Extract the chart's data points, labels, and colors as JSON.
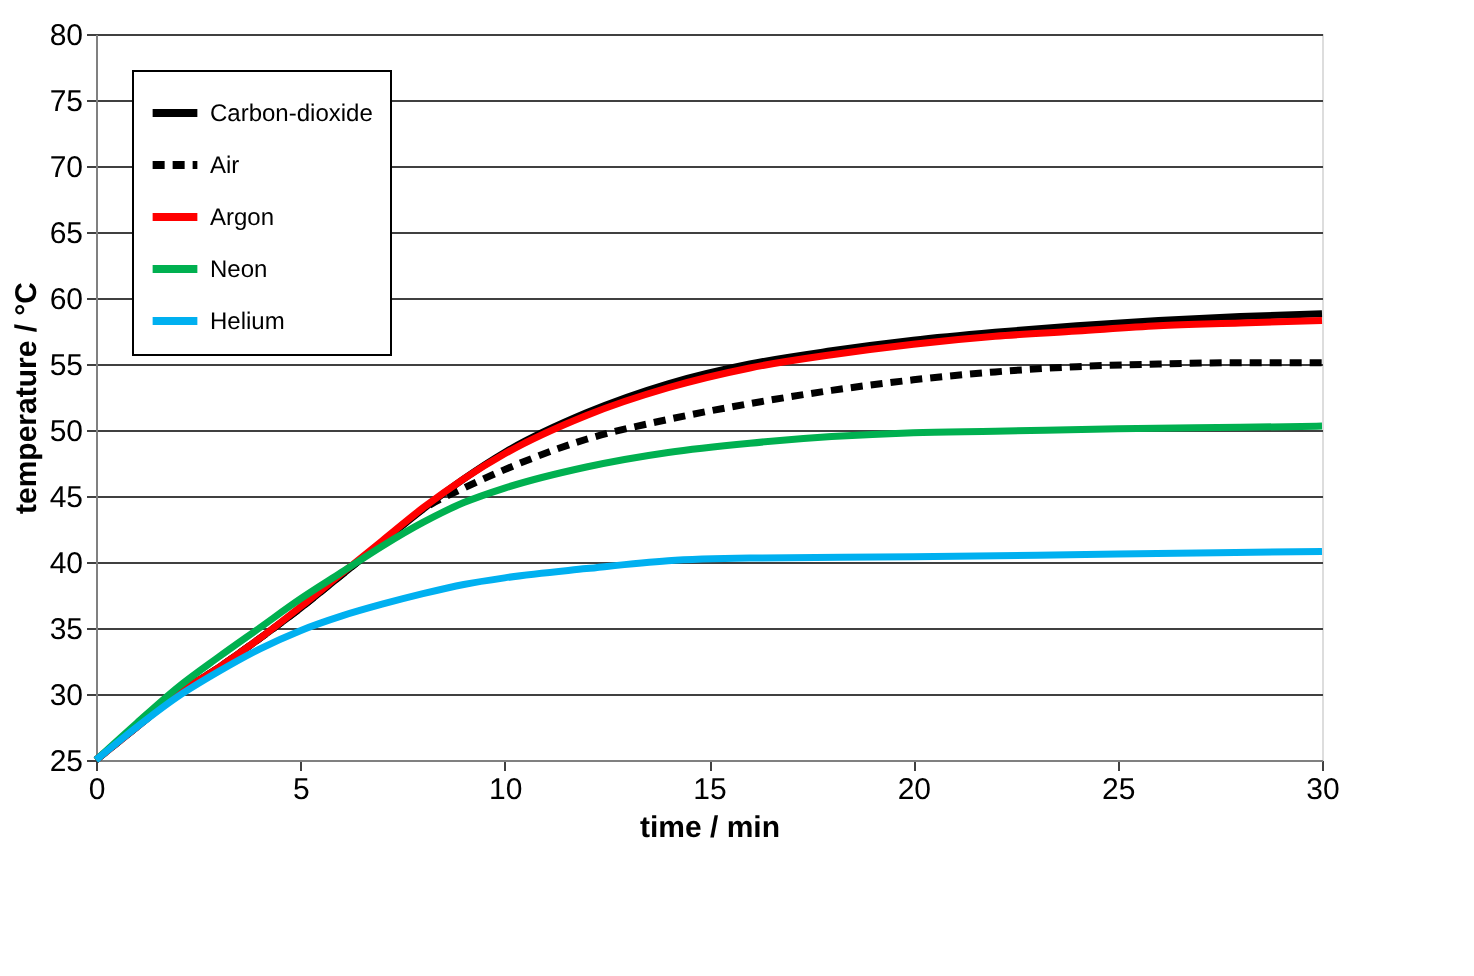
{
  "chart_data": {
    "type": "line",
    "xlabel": "time  / min",
    "ylabel": "temperature / °C",
    "xlim": [
      0,
      30
    ],
    "xticks": [
      0,
      5,
      10,
      15,
      20,
      25,
      30
    ],
    "ylim": [
      25,
      80
    ],
    "yticks": [
      25,
      30,
      35,
      40,
      45,
      50,
      55,
      60,
      65,
      70,
      75,
      80
    ],
    "grid": "y",
    "legend": "top left",
    "marker": "none",
    "series": [
      {
        "name": "Carbon-dioxide",
        "color": "#000000",
        "line_style": "solid",
        "x": [
          0,
          1,
          2,
          3,
          4,
          5,
          6,
          7,
          8,
          9,
          10,
          12,
          14,
          16,
          18,
          20,
          22,
          24,
          26,
          28,
          30
        ],
        "values": [
          25,
          27.5,
          30,
          32,
          34.2,
          36.5,
          39,
          41.5,
          44,
          46.3,
          48.3,
          51.3,
          53.5,
          55,
          56,
          56.8,
          57.4,
          57.9,
          58.3,
          58.6,
          58.8
        ]
      },
      {
        "name": "Air",
        "color": "#000000",
        "line_style": "dashed",
        "x": [
          0,
          1,
          2,
          3,
          4,
          5,
          6,
          7,
          8,
          9,
          10,
          12,
          14,
          16,
          18,
          20,
          22,
          24,
          26,
          28,
          30
        ],
        "values": [
          25,
          27.5,
          30,
          32,
          34.2,
          36.5,
          39,
          41.5,
          44,
          45.6,
          47,
          49.3,
          50.8,
          52,
          53,
          53.8,
          54.4,
          54.8,
          55,
          55.1,
          55.1
        ]
      },
      {
        "name": "Argon",
        "color": "#ff0000",
        "line_style": "solid",
        "x": [
          0,
          1,
          2,
          3,
          4,
          5,
          6,
          7,
          8,
          9,
          10,
          12,
          14,
          16,
          18,
          20,
          22,
          24,
          26,
          28,
          30
        ],
        "values": [
          25,
          27.5,
          30,
          32,
          34.2,
          36.6,
          39.1,
          41.6,
          44.1,
          46.3,
          48.2,
          51.1,
          53.2,
          54.7,
          55.7,
          56.5,
          57.1,
          57.5,
          57.9,
          58.1,
          58.3
        ]
      },
      {
        "name": "Neon",
        "color": "#00b050",
        "line_style": "solid",
        "x": [
          0,
          1,
          2,
          3,
          4,
          5,
          6,
          7,
          8,
          9,
          10,
          12,
          14,
          16,
          18,
          20,
          22,
          25,
          28,
          30
        ],
        "values": [
          25,
          27.8,
          30.5,
          32.8,
          35,
          37.2,
          39.2,
          41.2,
          43,
          44.5,
          45.6,
          47.2,
          48.3,
          49,
          49.5,
          49.8,
          49.9,
          50.1,
          50.2,
          50.3
        ]
      },
      {
        "name": "Helium",
        "color": "#00b0f0",
        "line_style": "solid",
        "x": [
          0,
          1,
          2,
          3,
          4,
          5,
          6,
          7,
          8,
          9,
          10,
          12,
          14,
          16,
          20,
          25,
          30
        ],
        "values": [
          25,
          27.5,
          29.8,
          31.7,
          33.4,
          34.8,
          35.9,
          36.8,
          37.6,
          38.3,
          38.8,
          39.5,
          40.1,
          40.3,
          40.4,
          40.6,
          40.8
        ]
      }
    ]
  }
}
